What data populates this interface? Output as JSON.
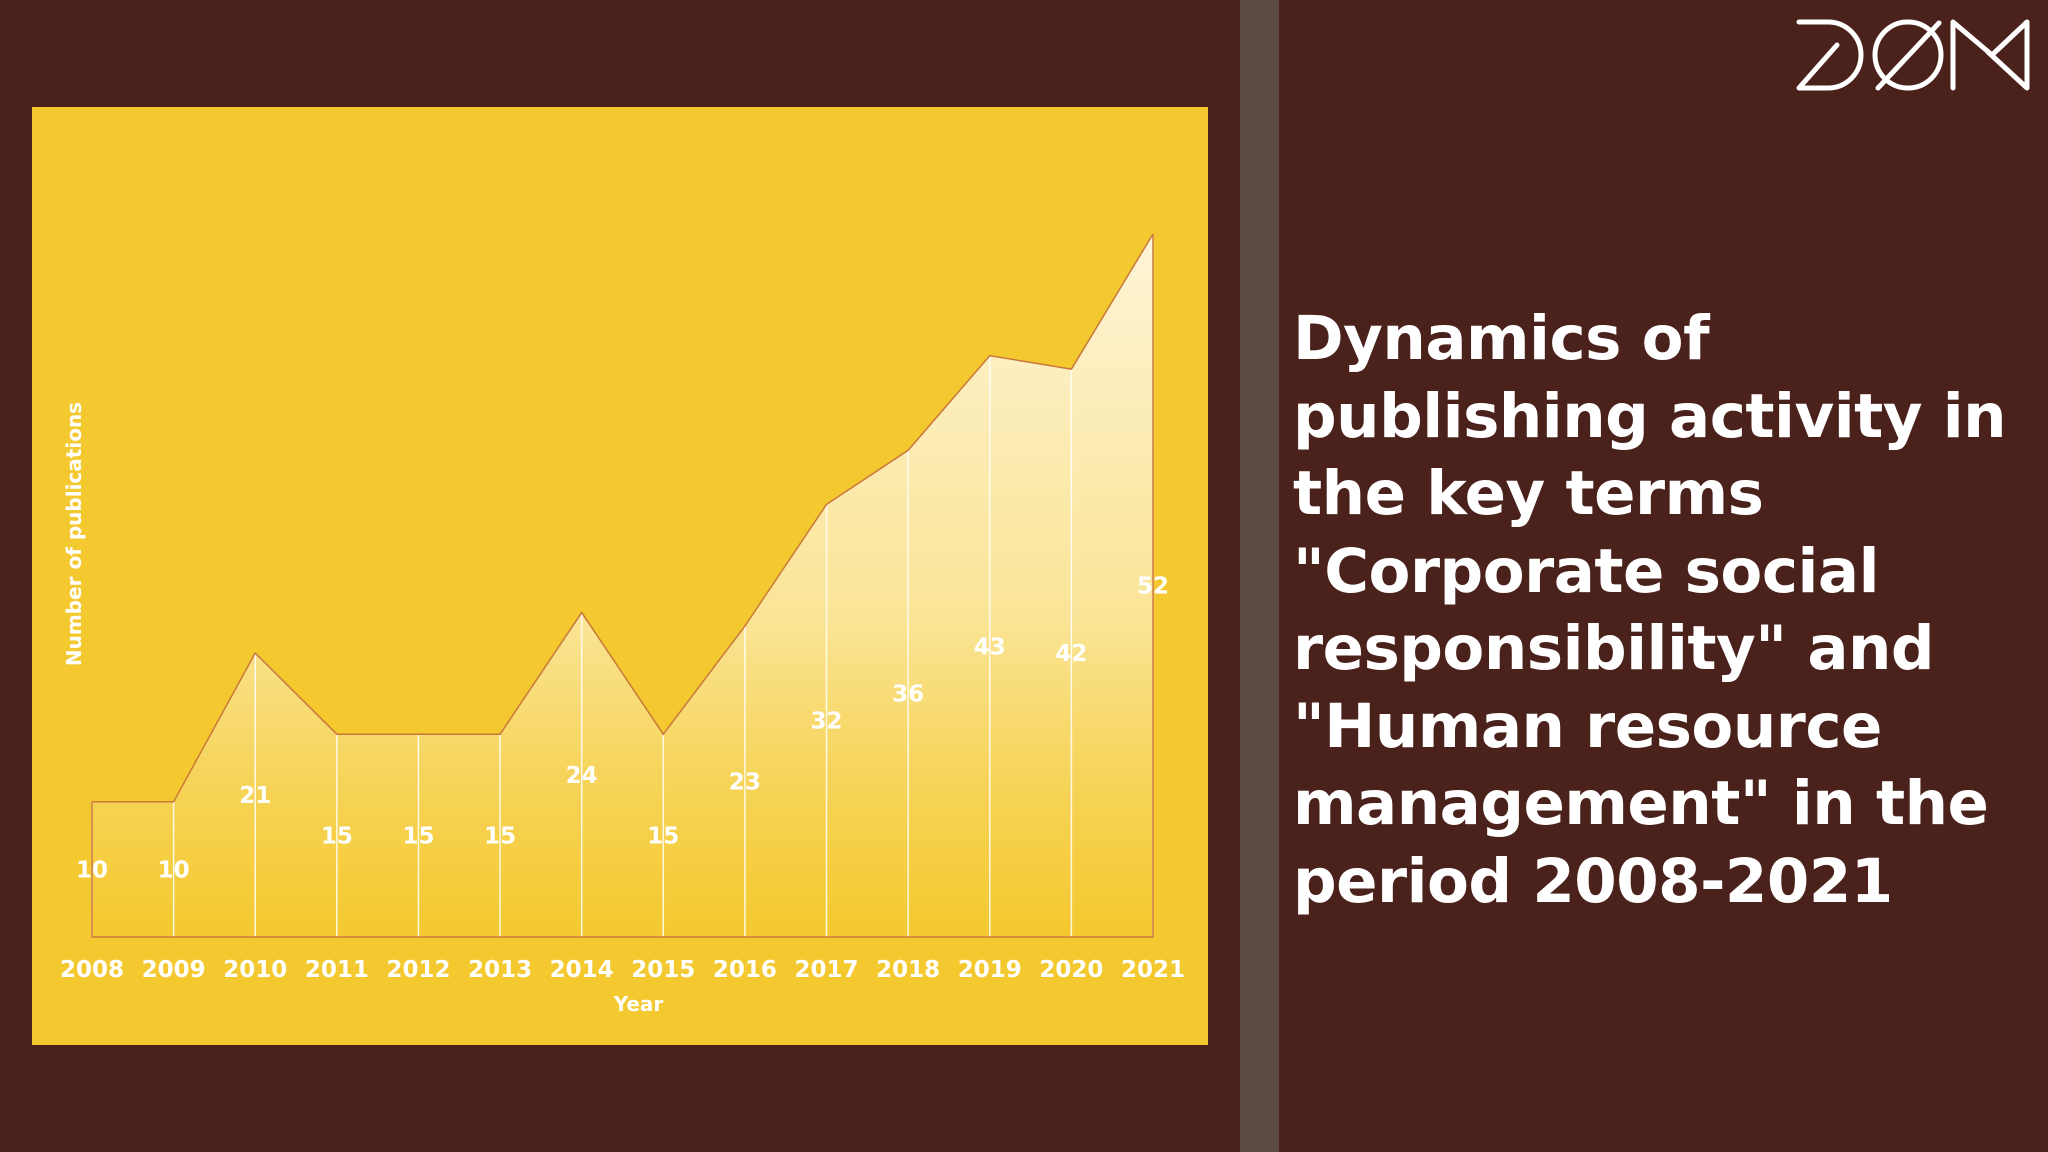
{
  "title": "Dynamics of publishing activity in the key terms \"Corporate social responsibility\" and \"Human resource management\" in the period 2008-2021",
  "logo": {
    "name": "logo-dom",
    "text": "DOM"
  },
  "colors": {
    "background": "#4a211b",
    "chart_panel": "#f4c930",
    "divider": "#5d4a43",
    "line": "#c9783a",
    "text": "#ffffff"
  },
  "chart_data": {
    "type": "area",
    "categories": [
      "2008",
      "2009",
      "2010",
      "2011",
      "2012",
      "2013",
      "2014",
      "2015",
      "2016",
      "2017",
      "2018",
      "2019",
      "2020",
      "2021"
    ],
    "series": [
      {
        "values": [
          10,
          10,
          21,
          15,
          15,
          15,
          24,
          15,
          23,
          32,
          36,
          43,
          42,
          52
        ]
      }
    ],
    "xlabel": "Year",
    "ylabel": "Number of publications",
    "grid": false,
    "data_labels": true
  }
}
